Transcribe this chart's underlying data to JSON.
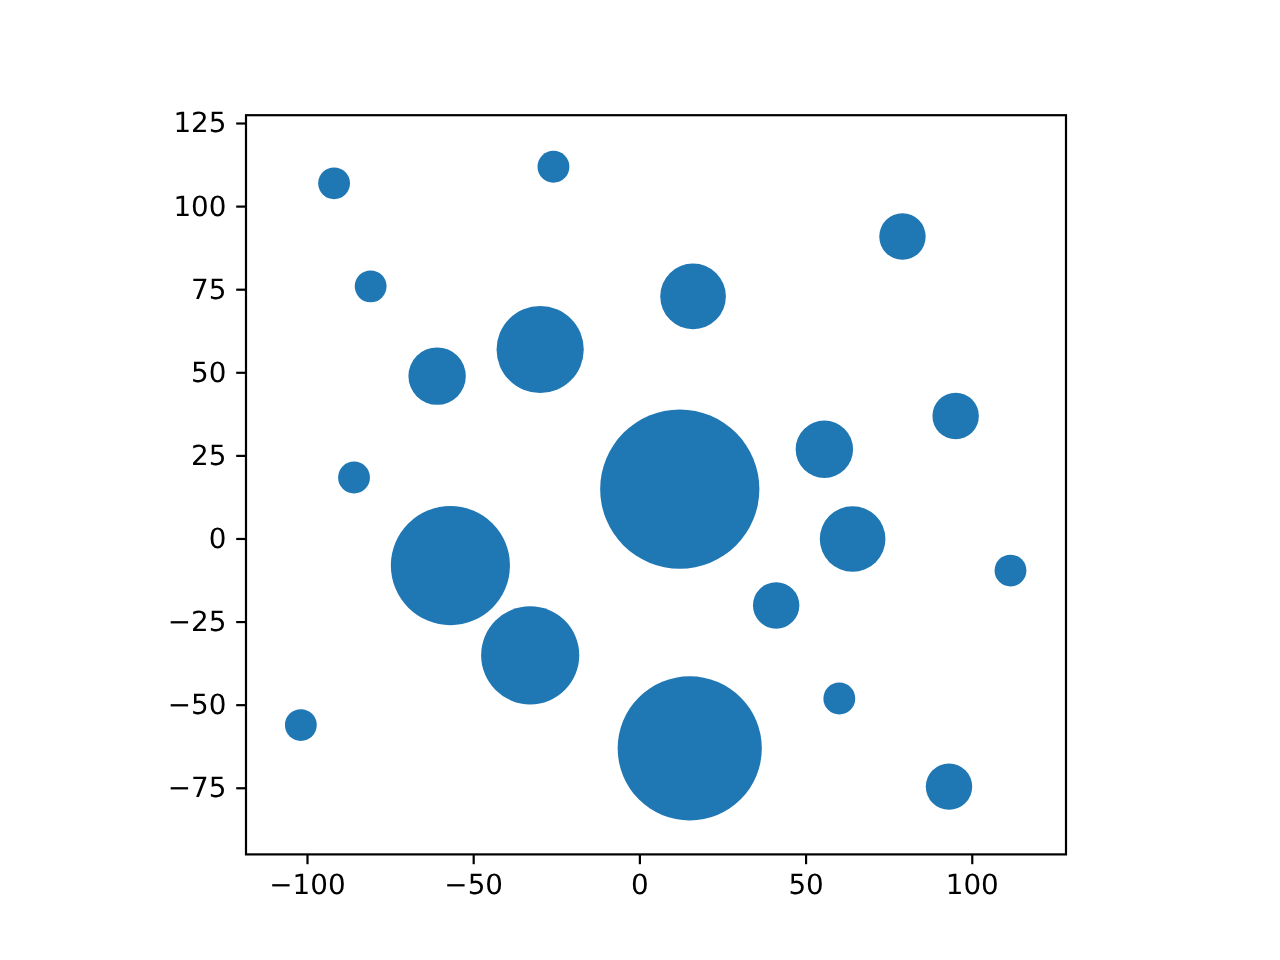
{
  "chart_data": {
    "type": "bubble",
    "x": [
      -92,
      -26,
      -81,
      -61,
      -30,
      -86,
      16,
      79,
      95,
      55.5,
      12,
      -57,
      -33,
      -102,
      15,
      64,
      41,
      111.5,
      60,
      93
    ],
    "values": [
      107,
      112,
      76,
      49,
      57,
      18.5,
      73,
      91,
      37,
      27,
      15,
      -8,
      -35,
      -56,
      -63,
      0,
      -20,
      -9.5,
      -48,
      -74.5
    ],
    "sizes": [
      0.04,
      0.04,
      0.04,
      0.13,
      0.3,
      0.04,
      0.17,
      0.085,
      0.085,
      0.13,
      1,
      0.56,
      0.38,
      0.04,
      0.82,
      0.17,
      0.085,
      0.04,
      0.04,
      0.085
    ],
    "color": "#1f77b4",
    "xlim": [
      -118.5,
      128.2
    ],
    "ylim": [
      -94.9,
      127.5
    ],
    "xticks": [
      -100,
      -50,
      0,
      50,
      100
    ],
    "yticks": [
      -75,
      -50,
      -25,
      0,
      25,
      50,
      75,
      100,
      125
    ]
  }
}
